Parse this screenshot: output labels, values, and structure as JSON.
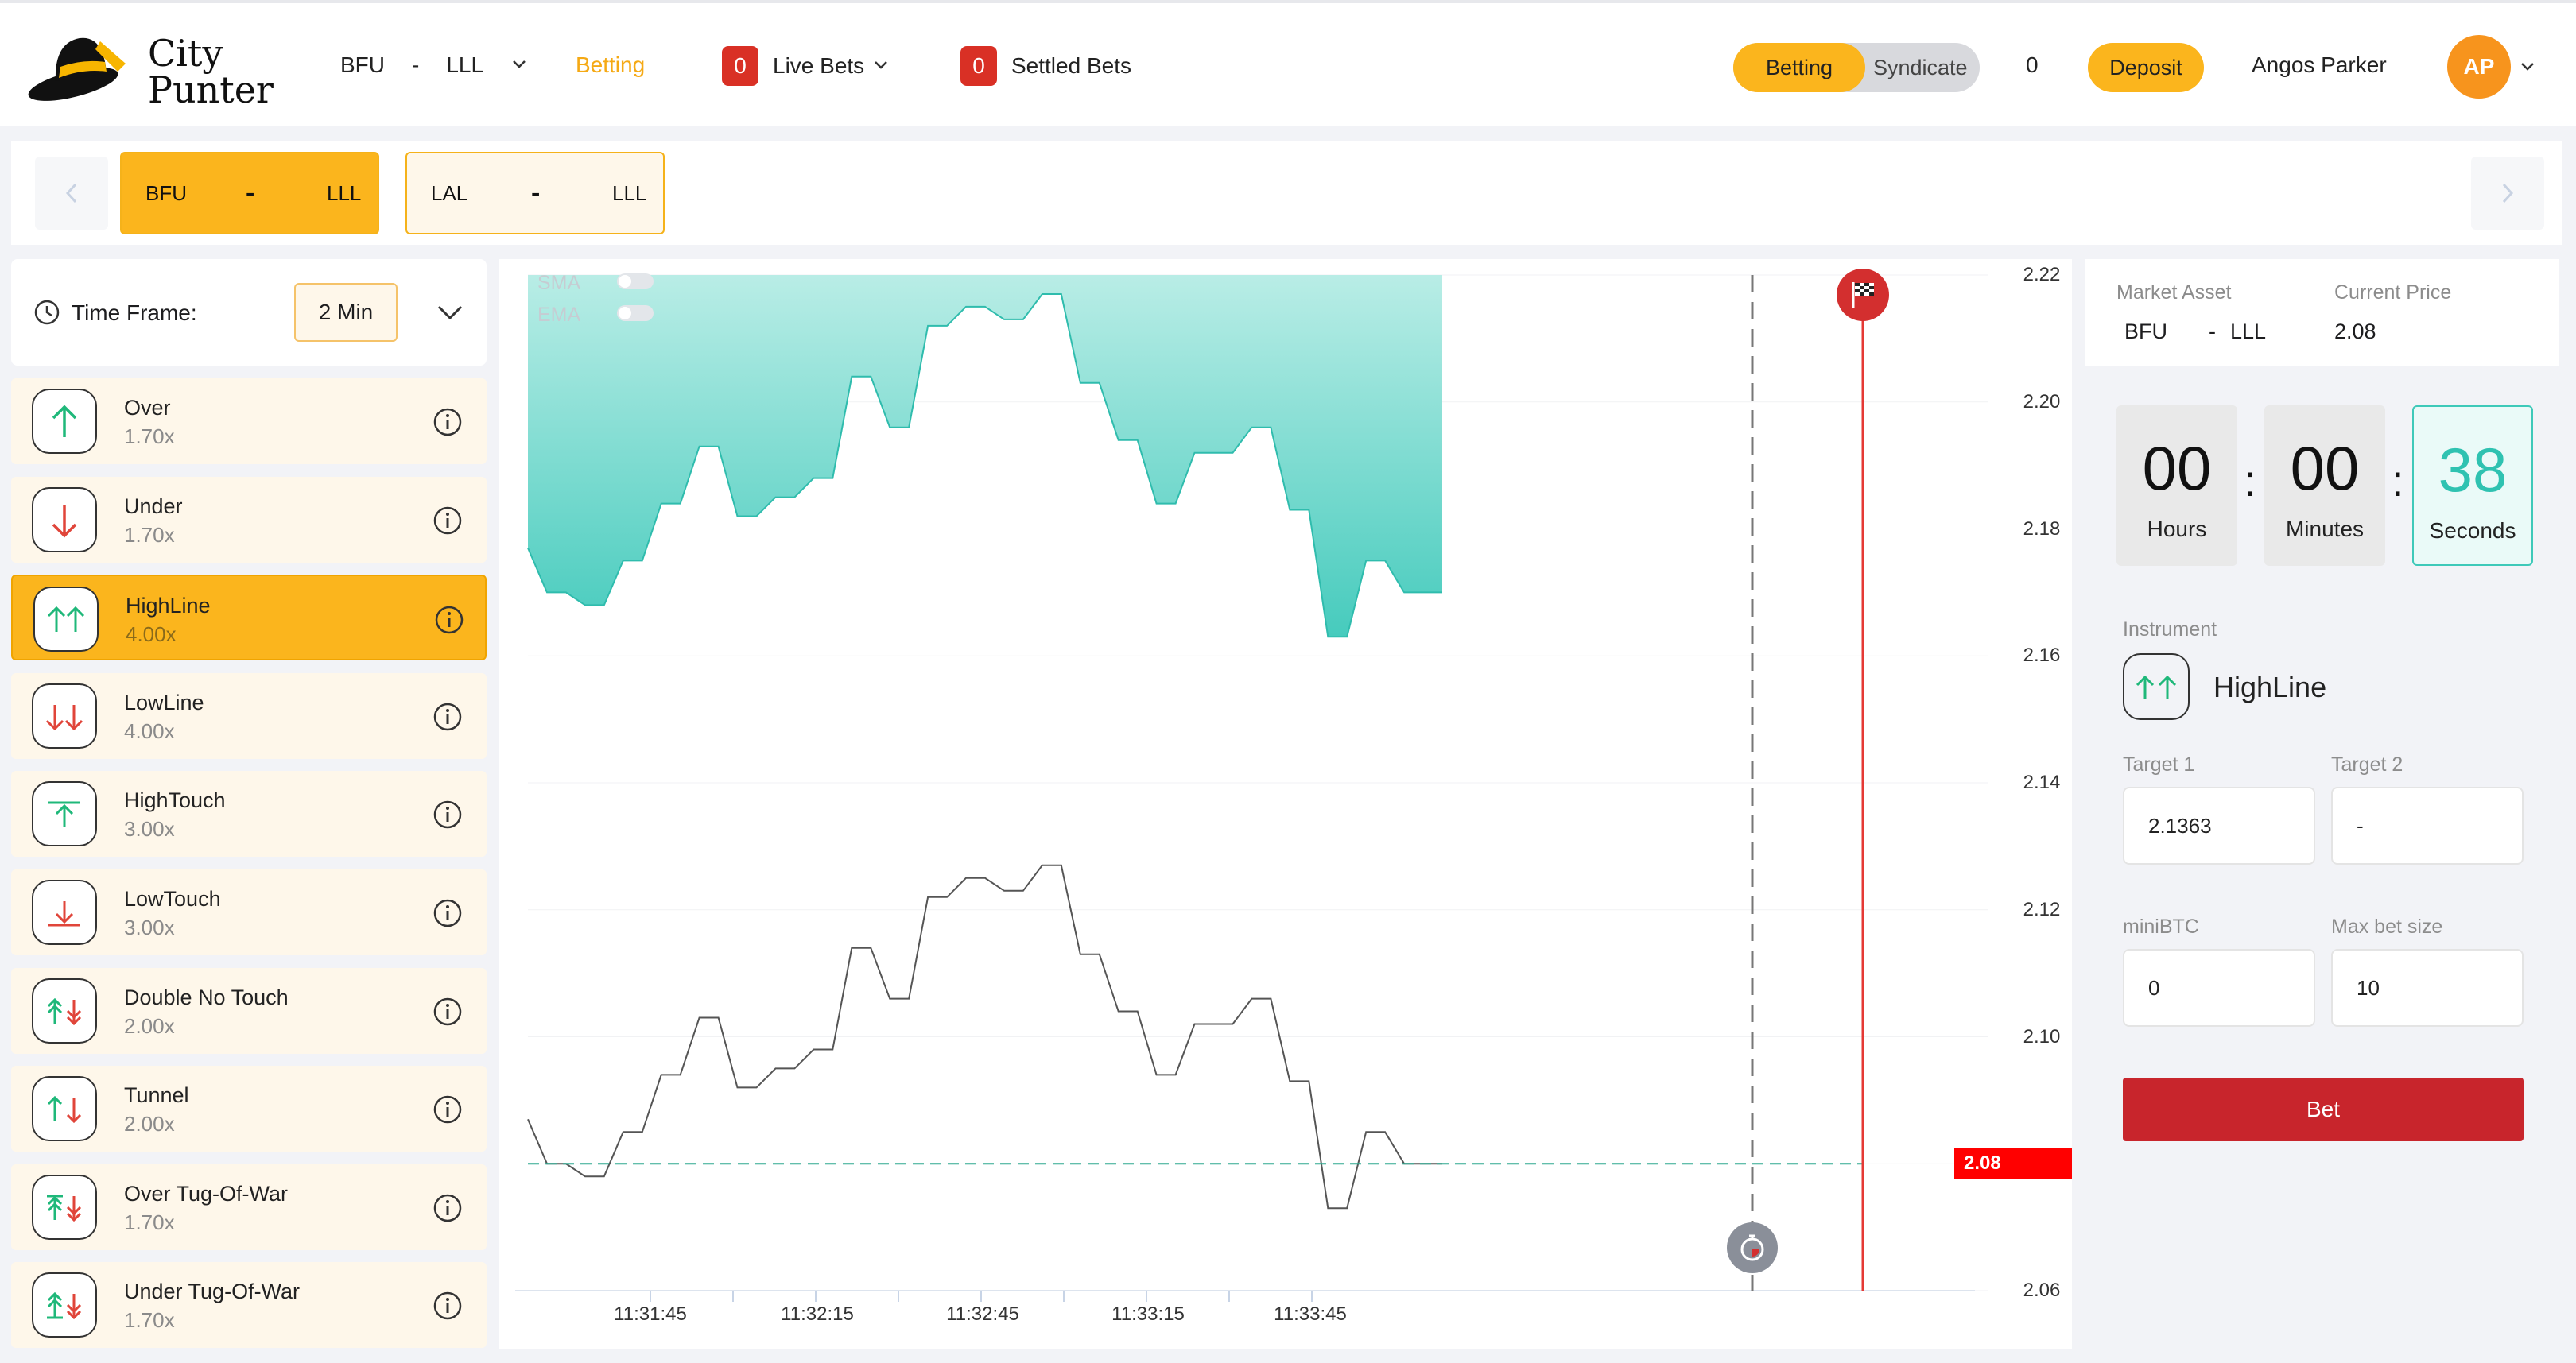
{
  "brand": {
    "line1": "City",
    "line2": "Punter"
  },
  "topnav": {
    "pair_base": "BFU",
    "pair_sep": "-",
    "pair_quote": "LLL",
    "betting": "Betting",
    "live_count": "0",
    "live_label": "Live Bets",
    "settled_count": "0",
    "settled_label": "Settled Bets",
    "toggle_betting": "Betting",
    "toggle_syndicate": "Syndicate",
    "balance": "0",
    "deposit": "Deposit",
    "user": "Angos Parker",
    "avatar": "AP"
  },
  "pairs": [
    {
      "base": "BFU",
      "sep": "-",
      "quote": "LLL"
    },
    {
      "base": "LAL",
      "sep": "-",
      "quote": "LLL"
    }
  ],
  "timeframe": {
    "label": "Time Frame:",
    "value": "2 Min"
  },
  "instruments": [
    {
      "name": "Over",
      "mult": "1.70x",
      "icon": "arrow-up-icon"
    },
    {
      "name": "Under",
      "mult": "1.70x",
      "icon": "arrow-down-icon"
    },
    {
      "name": "HighLine",
      "mult": "4.00x",
      "icon": "double-arrow-up-icon"
    },
    {
      "name": "LowLine",
      "mult": "4.00x",
      "icon": "double-arrow-down-icon"
    },
    {
      "name": "HighTouch",
      "mult": "3.00x",
      "icon": "high-touch-icon"
    },
    {
      "name": "LowTouch",
      "mult": "3.00x",
      "icon": "low-touch-icon"
    },
    {
      "name": "Double No Touch",
      "mult": "2.00x",
      "icon": "double-no-touch-icon"
    },
    {
      "name": "Tunnel",
      "mult": "2.00x",
      "icon": "tunnel-icon"
    },
    {
      "name": "Over Tug-Of-War",
      "mult": "1.70x",
      "icon": "over-tug-of-war-icon"
    },
    {
      "name": "Under Tug-Of-War",
      "mult": "1.70x",
      "icon": "under-tug-of-war-icon"
    }
  ],
  "chart_controls": {
    "sma": "SMA",
    "ema": "EMA",
    "current_price_tag": "2.08"
  },
  "chart_data": {
    "type": "line",
    "yticks": [
      "2.22",
      "2.20",
      "2.18",
      "2.16",
      "2.14",
      "2.12",
      "2.10",
      "2.08",
      "2.06"
    ],
    "ylim": [
      2.06,
      2.22
    ],
    "xticks": [
      "11:31:45",
      "11:32:15",
      "11:32:45",
      "11:33:15",
      "11:33:45"
    ],
    "series": [
      {
        "values": [
          2.087,
          2.08,
          2.08,
          2.078,
          2.078,
          2.085,
          2.085,
          2.094,
          2.094,
          2.103,
          2.103,
          2.092,
          2.092,
          2.095,
          2.095,
          2.098,
          2.098,
          2.114,
          2.114,
          2.106,
          2.106,
          2.122,
          2.122,
          2.125,
          2.125,
          2.123,
          2.123,
          2.127,
          2.127,
          2.113,
          2.113,
          2.104,
          2.104,
          2.094,
          2.094,
          2.102,
          2.102,
          2.102,
          2.106,
          2.106,
          2.093,
          2.093,
          2.073,
          2.073,
          2.085,
          2.085,
          2.08,
          2.08,
          2.08
        ]
      }
    ],
    "current_price": 2.08
  },
  "panel": {
    "asset_label": "Market Asset",
    "asset_base": "BFU",
    "asset_sep": "-",
    "asset_quote": "LLL",
    "price_label": "Current Price",
    "price": "2.08",
    "hours": "00",
    "hours_label": "Hours",
    "minutes": "00",
    "minutes_label": "Minutes",
    "seconds": "38",
    "seconds_label": "Seconds",
    "instrument_label": "Instrument",
    "instrument": "HighLine",
    "target1_label": "Target 1",
    "target1": "2.1363",
    "target2_label": "Target 2",
    "target2": "-",
    "minibtc_label": "miniBTC",
    "minibtc": "0",
    "maxbet_label": "Max bet size",
    "maxbet": "10",
    "bet": "Bet"
  },
  "colors": {
    "accent": "#fbb51d",
    "danger": "#d32f2f",
    "teal": "#3ec9b9"
  }
}
